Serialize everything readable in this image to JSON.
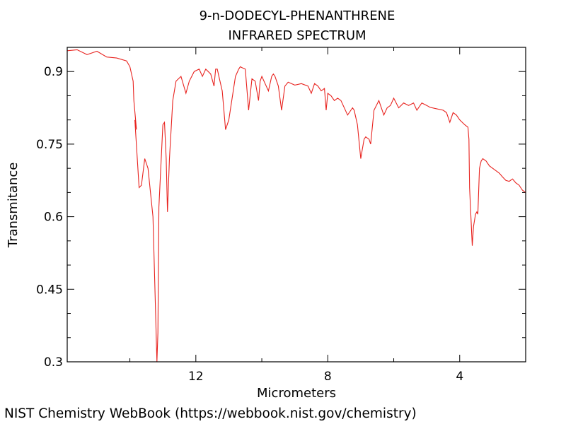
{
  "chart_data": {
    "type": "line",
    "title": "9-n-DODECYL-PHENANTHRENE",
    "subtitle": "INFRARED SPECTRUM",
    "xlabel": "Micrometers",
    "ylabel": "Transmitance",
    "xlim": [
      15.9,
      2.0
    ],
    "ylim": [
      0.3,
      0.95
    ],
    "x_reversed": true,
    "x_ticks": [
      12,
      8,
      4
    ],
    "x_tick_labels": [
      "12",
      "8",
      "4"
    ],
    "y_ticks": [
      0.3,
      0.45,
      0.6,
      0.75,
      0.9
    ],
    "y_tick_labels": [
      "0.3",
      "0.45",
      "0.6",
      "0.75",
      "0.9"
    ],
    "grid": false,
    "series": [
      {
        "color": "#e8231f",
        "x": [
          15.9,
          15.6,
          15.3,
          15.0,
          14.7,
          14.4,
          14.1,
          14.0,
          13.9,
          13.88,
          13.8,
          13.85,
          13.72,
          13.65,
          13.55,
          13.45,
          13.3,
          13.18,
          13.15,
          13.12,
          13.0,
          12.95,
          12.9,
          12.86,
          12.8,
          12.7,
          12.6,
          12.45,
          12.3,
          12.2,
          12.05,
          11.9,
          11.8,
          11.7,
          11.55,
          11.45,
          11.4,
          11.35,
          11.3,
          11.2,
          11.1,
          11.0,
          10.8,
          10.7,
          10.65,
          10.6,
          10.5,
          10.4,
          10.3,
          10.2,
          10.1,
          10.05,
          10.0,
          9.9,
          9.8,
          9.7,
          9.65,
          9.6,
          9.5,
          9.4,
          9.3,
          9.2,
          9.0,
          8.8,
          8.6,
          8.5,
          8.4,
          8.3,
          8.2,
          8.1,
          8.05,
          8.0,
          7.9,
          7.8,
          7.7,
          7.6,
          7.4,
          7.3,
          7.25,
          7.2,
          7.1,
          7.0,
          6.95,
          6.9,
          6.85,
          6.75,
          6.7,
          6.6,
          6.45,
          6.3,
          6.2,
          6.1,
          6.0,
          5.85,
          5.7,
          5.55,
          5.4,
          5.3,
          5.15,
          5.0,
          4.9,
          4.7,
          4.5,
          4.4,
          4.3,
          4.2,
          4.1,
          4.0,
          3.85,
          3.75,
          3.72,
          3.7,
          3.62,
          3.58,
          3.52,
          3.48,
          3.45,
          3.4,
          3.35,
          3.3,
          3.2,
          3.1,
          3.0,
          2.9,
          2.8,
          2.7,
          2.6,
          2.5,
          2.4,
          2.3,
          2.2,
          2.1,
          2.0
        ],
        "y": [
          0.943,
          0.945,
          0.935,
          0.942,
          0.93,
          0.928,
          0.922,
          0.91,
          0.88,
          0.84,
          0.78,
          0.8,
          0.66,
          0.665,
          0.72,
          0.7,
          0.6,
          0.3,
          0.36,
          0.62,
          0.79,
          0.795,
          0.72,
          0.61,
          0.72,
          0.84,
          0.88,
          0.89,
          0.855,
          0.88,
          0.9,
          0.905,
          0.89,
          0.905,
          0.895,
          0.87,
          0.905,
          0.905,
          0.89,
          0.86,
          0.78,
          0.8,
          0.89,
          0.905,
          0.91,
          0.908,
          0.905,
          0.82,
          0.885,
          0.88,
          0.84,
          0.88,
          0.89,
          0.875,
          0.86,
          0.89,
          0.895,
          0.89,
          0.87,
          0.82,
          0.87,
          0.878,
          0.872,
          0.875,
          0.87,
          0.855,
          0.875,
          0.87,
          0.86,
          0.865,
          0.82,
          0.855,
          0.85,
          0.84,
          0.845,
          0.84,
          0.81,
          0.82,
          0.825,
          0.82,
          0.79,
          0.72,
          0.74,
          0.76,
          0.765,
          0.76,
          0.75,
          0.82,
          0.84,
          0.81,
          0.825,
          0.83,
          0.845,
          0.825,
          0.835,
          0.83,
          0.835,
          0.82,
          0.835,
          0.83,
          0.826,
          0.823,
          0.82,
          0.815,
          0.795,
          0.815,
          0.81,
          0.8,
          0.79,
          0.785,
          0.76,
          0.66,
          0.54,
          0.58,
          0.605,
          0.61,
          0.605,
          0.7,
          0.715,
          0.72,
          0.715,
          0.705,
          0.7,
          0.695,
          0.69,
          0.682,
          0.675,
          0.673,
          0.678,
          0.67,
          0.665,
          0.655,
          0.65
        ]
      }
    ]
  },
  "footer": "NIST Chemistry WebBook (https://webbook.nist.gov/chemistry)"
}
